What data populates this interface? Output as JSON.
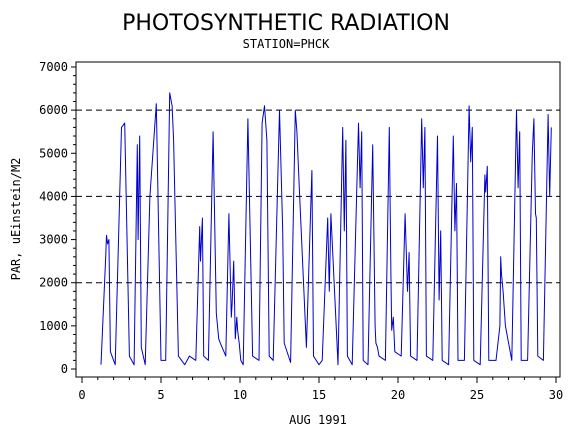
{
  "chart_data": {
    "type": "line",
    "title": "PHOTOSYNTHETIC RADIATION",
    "subtitle": "STATION=PHCK",
    "xlabel": "AUG 1991",
    "ylabel": "PAR, uEinstein/M2",
    "xlim": [
      0,
      30
    ],
    "ylim": [
      0,
      7000
    ],
    "x_ticks": [
      0,
      5,
      10,
      15,
      20,
      25,
      30
    ],
    "x_tick_labels": [
      "0",
      "5",
      "10",
      "15",
      "20",
      "25",
      "30"
    ],
    "y_ticks": [
      0,
      1000,
      2000,
      3000,
      4000,
      5000,
      6000,
      7000
    ],
    "y_tick_labels": [
      "0",
      "1000",
      "2000",
      "3000",
      "4000",
      "5000",
      "6000",
      "7000"
    ],
    "reference_lines": [
      2000,
      4000,
      6000
    ],
    "grid": false,
    "colors": {
      "series": "#0000cc",
      "axis": "#000000"
    },
    "series": [
      {
        "x": [
          1.2,
          1.5,
          1.55,
          1.62,
          1.7,
          1.8,
          2.1,
          2.5,
          2.7,
          3.0,
          3.3,
          3.5,
          3.55,
          3.65,
          3.75,
          4.0,
          4.3,
          4.7,
          5.0,
          5.3,
          5.55,
          5.7,
          5.8,
          6.1,
          6.5,
          6.8,
          7.2,
          7.45,
          7.5,
          7.62,
          7.7,
          8.0,
          8.3,
          8.5,
          8.65,
          8.75,
          9.1,
          9.3,
          9.45,
          9.5,
          9.6,
          9.7,
          9.8,
          9.85,
          9.95,
          10.05,
          10.2,
          10.5,
          10.8,
          11.2,
          11.4,
          11.55,
          11.7,
          11.85,
          12.1,
          12.5,
          12.7,
          12.8,
          13.2,
          13.5,
          13.6,
          13.75,
          14.2,
          14.55,
          14.65,
          15.0,
          15.2,
          15.55,
          15.65,
          15.75,
          16.2,
          16.5,
          16.6,
          16.7,
          16.8,
          17.1,
          17.5,
          17.6,
          17.7,
          17.8,
          18.1,
          18.4,
          18.55,
          18.6,
          18.7,
          18.8,
          19.2,
          19.45,
          19.55,
          19.6,
          19.7,
          19.8,
          20.2,
          20.45,
          20.6,
          20.7,
          20.8,
          21.2,
          21.5,
          21.6,
          21.7,
          21.8,
          22.2,
          22.5,
          22.6,
          22.7,
          22.8,
          23.2,
          23.5,
          23.6,
          23.7,
          23.8,
          24.2,
          24.5,
          24.6,
          24.7,
          24.8,
          25.2,
          25.5,
          25.55,
          25.65,
          25.75,
          26.2,
          26.45,
          26.5,
          26.55,
          26.65,
          26.8,
          27.2,
          27.5,
          27.6,
          27.7,
          27.8,
          28.2,
          28.5,
          28.6,
          28.7,
          28.75,
          28.85,
          29.2,
          29.5,
          29.6,
          29.7
        ],
        "y": [
          100,
          2600,
          3100,
          2900,
          3000,
          400,
          100,
          5600,
          5700,
          300,
          100,
          5200,
          3000,
          5400,
          500,
          100,
          4000,
          6150,
          200,
          200,
          6400,
          6100,
          5300,
          300,
          100,
          300,
          200,
          3300,
          2500,
          3500,
          300,
          200,
          5500,
          1300,
          700,
          600,
          300,
          3600,
          1200,
          1500,
          2500,
          700,
          1200,
          900,
          600,
          200,
          100,
          5800,
          300,
          200,
          5700,
          6100,
          5300,
          300,
          200,
          6000,
          3200,
          600,
          150,
          6000,
          5500,
          4200,
          500,
          4600,
          300,
          100,
          200,
          3500,
          1800,
          3600,
          100,
          5600,
          3200,
          5300,
          300,
          100,
          5700,
          4200,
          5500,
          200,
          100,
          5200,
          1000,
          600,
          500,
          300,
          200,
          5600,
          2200,
          900,
          1200,
          400,
          300,
          3600,
          1800,
          2700,
          300,
          200,
          5800,
          4200,
          5600,
          300,
          200,
          5400,
          1600,
          3200,
          200,
          100,
          5400,
          3200,
          4300,
          200,
          200,
          6100,
          4800,
          5600,
          200,
          100,
          4500,
          4100,
          4700,
          200,
          200,
          1000,
          2600,
          2200,
          1800,
          1000,
          200,
          6000,
          4200,
          5500,
          200,
          200,
          5000,
          5800,
          3600,
          3500,
          300,
          200,
          5900,
          4000,
          5600
        ]
      }
    ]
  }
}
